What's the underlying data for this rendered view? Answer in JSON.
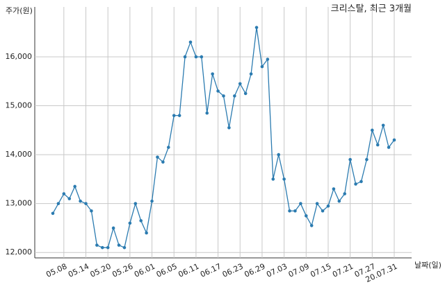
{
  "chart_data": {
    "type": "line",
    "title": "크리스탈, 최근 3개월",
    "y_label": "주가(원)",
    "x_label": "날짜(일)",
    "categories": [
      null,
      null,
      "05.08",
      null,
      null,
      null,
      "05.14",
      null,
      null,
      null,
      "05.20",
      null,
      null,
      null,
      "05.26",
      null,
      null,
      null,
      "06.01",
      null,
      null,
      null,
      "06.05",
      null,
      null,
      null,
      "06.11",
      null,
      null,
      null,
      "06.17",
      null,
      null,
      null,
      "06.23",
      null,
      null,
      null,
      "06.29",
      null,
      null,
      null,
      "07.03",
      null,
      null,
      null,
      "07.09",
      null,
      null,
      null,
      "07.15",
      null,
      null,
      null,
      "07.21",
      null,
      null,
      null,
      "07.27",
      null,
      null,
      null,
      "20.07.31"
    ],
    "series": [
      {
        "name": "크리스탈",
        "color": "#2b7bb0",
        "values": [
          12800,
          13000,
          13200,
          13100,
          13350,
          13050,
          13000,
          12850,
          12150,
          12100,
          12100,
          12500,
          12150,
          12100,
          12600,
          13000,
          12650,
          12400,
          13050,
          13950,
          13850,
          14150,
          14800,
          14800,
          16000,
          16300,
          16000,
          16000,
          14850,
          15650,
          15300,
          15200,
          14550,
          15200,
          15450,
          15250,
          15650,
          16600,
          15800,
          15950,
          13500,
          14000,
          13500,
          12850,
          12850,
          13000,
          12750,
          12550,
          13000,
          12850,
          12950,
          13300,
          13050,
          13200,
          13900,
          13400,
          13450,
          13900,
          14500,
          14200,
          14600,
          14150,
          14300
        ]
      }
    ],
    "ylim": [
      11890,
      17020
    ],
    "yticks": [
      {
        "value": 12000,
        "label": "12,000"
      },
      {
        "value": 13000,
        "label": "13,000"
      },
      {
        "value": 14000,
        "label": "14,000"
      },
      {
        "value": 15000,
        "label": "15,000"
      },
      {
        "value": 16000,
        "label": "16,000"
      }
    ],
    "grid": true
  }
}
